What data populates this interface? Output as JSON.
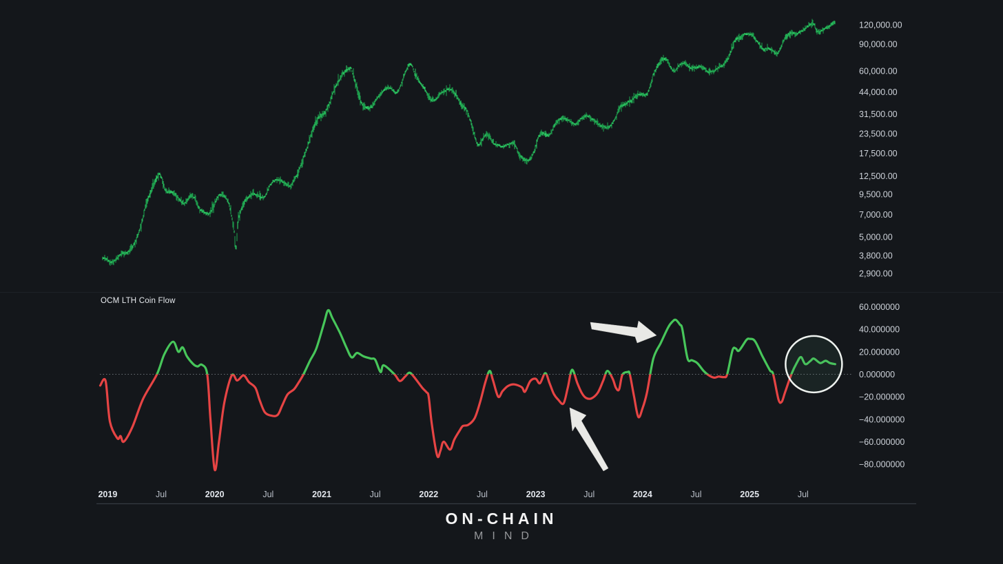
{
  "app": {
    "background": "#14171b",
    "axis_text_color": "#cdd2d9",
    "axis_year_color": "#e2e6ec",
    "axis_month_color": "#b9bfc8",
    "separator_color": "#363b42",
    "zero_line_color": "#8a9097"
  },
  "price_panel": {
    "y_ticks": [
      {
        "text": "120,000.00",
        "value": 120000
      },
      {
        "text": "90,000.00",
        "value": 90000
      },
      {
        "text": "60,000.00",
        "value": 60000
      },
      {
        "text": "44,000.00",
        "value": 44000
      },
      {
        "text": "31,500.00",
        "value": 31500
      },
      {
        "text": "23,500.00",
        "value": 23500
      },
      {
        "text": "17,500.00",
        "value": 17500
      },
      {
        "text": "12,500.00",
        "value": 12500
      },
      {
        "text": "9,500.00",
        "value": 9500
      },
      {
        "text": "7,000.00",
        "value": 7000
      },
      {
        "text": "5,000.00",
        "value": 5000
      },
      {
        "text": "3,800.00",
        "value": 3800
      },
      {
        "text": "2,900.00",
        "value": 2900
      }
    ],
    "candle_colors": [
      "#2ed166",
      "#27b65a",
      "#1d9a4b"
    ]
  },
  "indicator_panel": {
    "label": "OCM LTH Coin Flow",
    "y_ticks": [
      {
        "text": "60.000000",
        "value": 60
      },
      {
        "text": "40.000000",
        "value": 40
      },
      {
        "text": "20.000000",
        "value": 20
      },
      {
        "text": "0.000000",
        "value": 0
      },
      {
        "text": "−20.000000",
        "value": -20
      },
      {
        "text": "−40.000000",
        "value": -40
      },
      {
        "text": "−60.000000",
        "value": -60
      },
      {
        "text": "−80.000000",
        "value": -80
      }
    ],
    "positive_color": "#47c65a",
    "negative_color": "#e64444"
  },
  "x_axis": {
    "labels": [
      {
        "text": "2019",
        "t": 2019.0,
        "style": "year"
      },
      {
        "text": "Jul",
        "t": 2019.5,
        "style": "month"
      },
      {
        "text": "2020",
        "t": 2020.0,
        "style": "year"
      },
      {
        "text": "Jul",
        "t": 2020.5,
        "style": "month"
      },
      {
        "text": "2021",
        "t": 2021.0,
        "style": "year"
      },
      {
        "text": "Jul",
        "t": 2021.5,
        "style": "month"
      },
      {
        "text": "2022",
        "t": 2022.0,
        "style": "year"
      },
      {
        "text": "Jul",
        "t": 2022.5,
        "style": "month"
      },
      {
        "text": "2023",
        "t": 2023.0,
        "style": "year"
      },
      {
        "text": "Jul",
        "t": 2023.5,
        "style": "month"
      },
      {
        "text": "2024",
        "t": 2024.0,
        "style": "year"
      },
      {
        "text": "Jul",
        "t": 2024.5,
        "style": "month"
      },
      {
        "text": "2025",
        "t": 2025.0,
        "style": "year"
      },
      {
        "text": "Jul",
        "t": 2025.5,
        "style": "month"
      }
    ]
  },
  "logo": {
    "line1": "ON-CHAIN",
    "line2": "MIND"
  },
  "annotations": {
    "circle_highlight": {
      "t_center": 2025.6,
      "value_center": 9,
      "stroke": "#eef2ef",
      "fill": "rgba(90,160,115,0.10)"
    },
    "arrows": [
      {
        "direction": "right",
        "tip_t": 2024.13,
        "tip_value": 34,
        "color": "#e9e9e6"
      },
      {
        "direction": "up-left",
        "tip_t": 2023.32,
        "tip_value": -31,
        "color": "#e9e9e6"
      }
    ]
  },
  "chart_data": [
    {
      "type": "candlestick",
      "name": "BTC price",
      "y_scale": "log",
      "x_range": [
        2018.93,
        2025.8
      ],
      "y_tick_values": [
        120000,
        90000,
        60000,
        44000,
        31500,
        23500,
        17500,
        12500,
        9500,
        7000,
        5000,
        3800,
        2900
      ],
      "points": [
        [
          2018.95,
          3700
        ],
        [
          2019.04,
          3437
        ],
        [
          2019.12,
          3854
        ],
        [
          2019.21,
          4105
        ],
        [
          2019.29,
          5350
        ],
        [
          2019.37,
          8574
        ],
        [
          2019.46,
          12200
        ],
        [
          2019.49,
          12900
        ],
        [
          2019.54,
          10085
        ],
        [
          2019.62,
          9630
        ],
        [
          2019.71,
          8310
        ],
        [
          2019.79,
          9199
        ],
        [
          2019.87,
          7569
        ],
        [
          2019.96,
          7193
        ],
        [
          2020.04,
          9350
        ],
        [
          2020.12,
          8599
        ],
        [
          2020.18,
          5600
        ],
        [
          2020.2,
          4200
        ],
        [
          2020.22,
          6438
        ],
        [
          2020.29,
          8658
        ],
        [
          2020.37,
          9461
        ],
        [
          2020.46,
          9137
        ],
        [
          2020.54,
          11356
        ],
        [
          2020.62,
          11680
        ],
        [
          2020.71,
          10784
        ],
        [
          2020.79,
          13804
        ],
        [
          2020.87,
          19713
        ],
        [
          2020.96,
          29001
        ],
        [
          2021.04,
          33114
        ],
        [
          2021.12,
          45137
        ],
        [
          2021.21,
          58918
        ],
        [
          2021.27,
          62500
        ],
        [
          2021.29,
          57750
        ],
        [
          2021.37,
          37332
        ],
        [
          2021.46,
          35040
        ],
        [
          2021.54,
          41626
        ],
        [
          2021.62,
          47166
        ],
        [
          2021.71,
          43790
        ],
        [
          2021.79,
          61318
        ],
        [
          2021.84,
          66500
        ],
        [
          2021.87,
          56907
        ],
        [
          2021.96,
          46306
        ],
        [
          2022.04,
          38483
        ],
        [
          2022.12,
          43193
        ],
        [
          2022.21,
          45538
        ],
        [
          2022.29,
          37714
        ],
        [
          2022.37,
          31792
        ],
        [
          2022.46,
          19942
        ],
        [
          2022.54,
          23336
        ],
        [
          2022.62,
          20049
        ],
        [
          2022.71,
          19431
        ],
        [
          2022.79,
          20495
        ],
        [
          2022.87,
          16300
        ],
        [
          2022.96,
          16547
        ],
        [
          2023.04,
          23139
        ],
        [
          2023.12,
          23147
        ],
        [
          2023.21,
          28478
        ],
        [
          2023.29,
          29268
        ],
        [
          2023.37,
          27219
        ],
        [
          2023.46,
          30477
        ],
        [
          2023.54,
          29230
        ],
        [
          2023.62,
          25931
        ],
        [
          2023.71,
          26967
        ],
        [
          2023.79,
          34667
        ],
        [
          2023.87,
          37723
        ],
        [
          2023.96,
          42265
        ],
        [
          2024.04,
          42582
        ],
        [
          2024.12,
          61198
        ],
        [
          2024.21,
          71333
        ],
        [
          2024.29,
          60636
        ],
        [
          2024.37,
          67491
        ],
        [
          2024.46,
          62678
        ],
        [
          2024.54,
          64619
        ],
        [
          2024.62,
          58969
        ],
        [
          2024.71,
          63329
        ],
        [
          2024.79,
          70215
        ],
        [
          2024.87,
          96449
        ],
        [
          2024.92,
          99500
        ],
        [
          2024.96,
          104500
        ],
        [
          2025.04,
          100000
        ],
        [
          2025.12,
          84349
        ],
        [
          2025.21,
          82548
        ],
        [
          2025.26,
          78500
        ],
        [
          2025.33,
          97000
        ],
        [
          2025.37,
          104600
        ],
        [
          2025.46,
          107100
        ],
        [
          2025.54,
          115800
        ],
        [
          2025.6,
          121500
        ],
        [
          2025.63,
          108800
        ],
        [
          2025.71,
          114000
        ],
        [
          2025.76,
          118500
        ],
        [
          2025.8,
          125500
        ]
      ]
    },
    {
      "type": "line",
      "name": "OCM LTH Coin Flow",
      "x_range": [
        2018.93,
        2025.8
      ],
      "y_tick_values": [
        60,
        40,
        20,
        0,
        -20,
        -40,
        -60,
        -80
      ],
      "zero_line": 0,
      "points": [
        [
          2018.93,
          -10
        ],
        [
          2018.98,
          -6
        ],
        [
          2019.02,
          -42
        ],
        [
          2019.09,
          -57
        ],
        [
          2019.12,
          -55
        ],
        [
          2019.15,
          -60
        ],
        [
          2019.23,
          -47
        ],
        [
          2019.33,
          -22
        ],
        [
          2019.46,
          0
        ],
        [
          2019.53,
          18
        ],
        [
          2019.61,
          29
        ],
        [
          2019.66,
          20
        ],
        [
          2019.7,
          24
        ],
        [
          2019.74,
          16
        ],
        [
          2019.8,
          9
        ],
        [
          2019.84,
          7
        ],
        [
          2019.88,
          8.5
        ],
        [
          2019.93,
          0
        ],
        [
          2019.96,
          -40
        ],
        [
          2020.0,
          -85
        ],
        [
          2020.04,
          -60
        ],
        [
          2020.09,
          -25
        ],
        [
          2020.16,
          -1
        ],
        [
          2020.21,
          -5.5
        ],
        [
          2020.27,
          -1
        ],
        [
          2020.32,
          -7
        ],
        [
          2020.38,
          -12
        ],
        [
          2020.42,
          -23
        ],
        [
          2020.47,
          -34
        ],
        [
          2020.54,
          -37
        ],
        [
          2020.59,
          -36
        ],
        [
          2020.63,
          -28
        ],
        [
          2020.68,
          -18
        ],
        [
          2020.74,
          -13.5
        ],
        [
          2020.78,
          -8
        ],
        [
          2020.83,
          0
        ],
        [
          2020.89,
          12
        ],
        [
          2020.95,
          23
        ],
        [
          2021.02,
          45
        ],
        [
          2021.06,
          57
        ],
        [
          2021.1,
          50
        ],
        [
          2021.17,
          37
        ],
        [
          2021.23,
          24
        ],
        [
          2021.28,
          15
        ],
        [
          2021.33,
          19
        ],
        [
          2021.39,
          16
        ],
        [
          2021.46,
          14
        ],
        [
          2021.5,
          13
        ],
        [
          2021.55,
          2
        ],
        [
          2021.58,
          8
        ],
        [
          2021.68,
          0
        ],
        [
          2021.73,
          -6
        ],
        [
          2021.78,
          -2
        ],
        [
          2021.82,
          1.5
        ],
        [
          2021.86,
          -2
        ],
        [
          2021.94,
          -12
        ],
        [
          2021.98,
          -16
        ],
        [
          2022.0,
          -20
        ],
        [
          2022.03,
          -45
        ],
        [
          2022.08,
          -72.5
        ],
        [
          2022.11,
          -68
        ],
        [
          2022.14,
          -60
        ],
        [
          2022.2,
          -67
        ],
        [
          2022.24,
          -58
        ],
        [
          2022.29,
          -50
        ],
        [
          2022.32,
          -46
        ],
        [
          2022.37,
          -45
        ],
        [
          2022.43,
          -39
        ],
        [
          2022.48,
          -25
        ],
        [
          2022.53,
          -7
        ],
        [
          2022.57,
          3
        ],
        [
          2022.6,
          -5
        ],
        [
          2022.65,
          -20
        ],
        [
          2022.69,
          -15
        ],
        [
          2022.74,
          -10.5
        ],
        [
          2022.8,
          -9
        ],
        [
          2022.87,
          -11.5
        ],
        [
          2022.9,
          -15.5
        ],
        [
          2022.95,
          -6
        ],
        [
          2023.0,
          -4
        ],
        [
          2023.04,
          -8
        ],
        [
          2023.09,
          1
        ],
        [
          2023.13,
          -8
        ],
        [
          2023.17,
          -17.5
        ],
        [
          2023.21,
          -22.5
        ],
        [
          2023.26,
          -26
        ],
        [
          2023.3,
          -12
        ],
        [
          2023.34,
          4
        ],
        [
          2023.39,
          -8
        ],
        [
          2023.43,
          -16.5
        ],
        [
          2023.47,
          -21
        ],
        [
          2023.52,
          -21.5
        ],
        [
          2023.58,
          -16.5
        ],
        [
          2023.63,
          -6
        ],
        [
          2023.67,
          3
        ],
        [
          2023.72,
          -4
        ],
        [
          2023.75,
          -12
        ],
        [
          2023.78,
          -13.5
        ],
        [
          2023.81,
          -0.5
        ],
        [
          2023.86,
          2
        ],
        [
          2023.88,
          0
        ],
        [
          2023.92,
          -20
        ],
        [
          2023.96,
          -38
        ],
        [
          2024.0,
          -30
        ],
        [
          2024.04,
          -16.5
        ],
        [
          2024.1,
          14
        ],
        [
          2024.17,
          28
        ],
        [
          2024.24,
          42
        ],
        [
          2024.28,
          47
        ],
        [
          2024.31,
          48.5
        ],
        [
          2024.35,
          44
        ],
        [
          2024.37,
          40.5
        ],
        [
          2024.42,
          14
        ],
        [
          2024.46,
          12.5
        ],
        [
          2024.51,
          10
        ],
        [
          2024.57,
          3
        ],
        [
          2024.62,
          -1
        ],
        [
          2024.67,
          -3
        ],
        [
          2024.71,
          -2
        ],
        [
          2024.76,
          -2.5
        ],
        [
          2024.79,
          0
        ],
        [
          2024.84,
          21.5
        ],
        [
          2024.87,
          23
        ],
        [
          2024.9,
          21
        ],
        [
          2024.97,
          30.5
        ],
        [
          2025.0,
          31.5
        ],
        [
          2025.05,
          29.5
        ],
        [
          2025.12,
          16
        ],
        [
          2025.19,
          3.5
        ],
        [
          2025.22,
          0
        ],
        [
          2025.27,
          -22.5
        ],
        [
          2025.3,
          -24.5
        ],
        [
          2025.33,
          -16.5
        ],
        [
          2025.39,
          0
        ],
        [
          2025.44,
          10
        ],
        [
          2025.48,
          15.3
        ],
        [
          2025.52,
          9
        ],
        [
          2025.57,
          12
        ],
        [
          2025.6,
          14
        ],
        [
          2025.66,
          10
        ],
        [
          2025.71,
          12
        ],
        [
          2025.75,
          10
        ],
        [
          2025.8,
          9
        ]
      ]
    }
  ]
}
